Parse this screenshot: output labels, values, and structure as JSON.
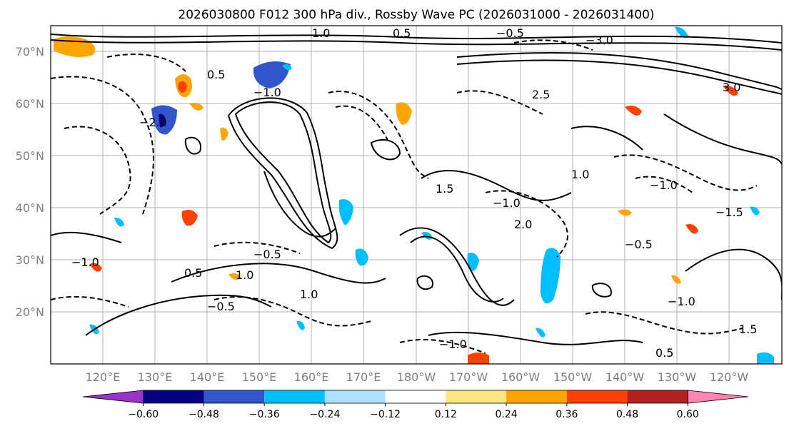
{
  "title": "2026030800 F012 300 hPa div., Rossby Wave PC (2026031000 - 2026031400)",
  "lat_labels": [
    "70°N",
    "60°N",
    "50°N",
    "40°N",
    "30°N",
    "20°N"
  ],
  "lon_labels": [
    "120°E",
    "130°E",
    "140°E",
    "150°E",
    "160°E",
    "170°E",
    "180°W",
    "170°W",
    "160°W",
    "150°W",
    "140°W",
    "130°W",
    "120°W"
  ],
  "colorbar": {
    "colors": [
      "#9933cc",
      "#000080",
      "#3355cc",
      "#00bfff",
      "#b0e0ff",
      "#ffffff",
      "#ffe680",
      "#ffa500",
      "#ff4000",
      "#b22222",
      "#ff85b0"
    ],
    "labels": [
      "−0.60",
      "−0.48",
      "−0.36",
      "−0.24",
      "−0.12",
      "0.12",
      "0.24",
      "0.36",
      "0.48",
      "0.60"
    ],
    "extend": "both"
  },
  "contour_labels": [
    "−1.0",
    "0.5",
    "−0.5",
    "1.0",
    "1.5",
    "2.0",
    "−1.5",
    "−2.0",
    "2.5",
    "3.0",
    "−3.0"
  ]
}
